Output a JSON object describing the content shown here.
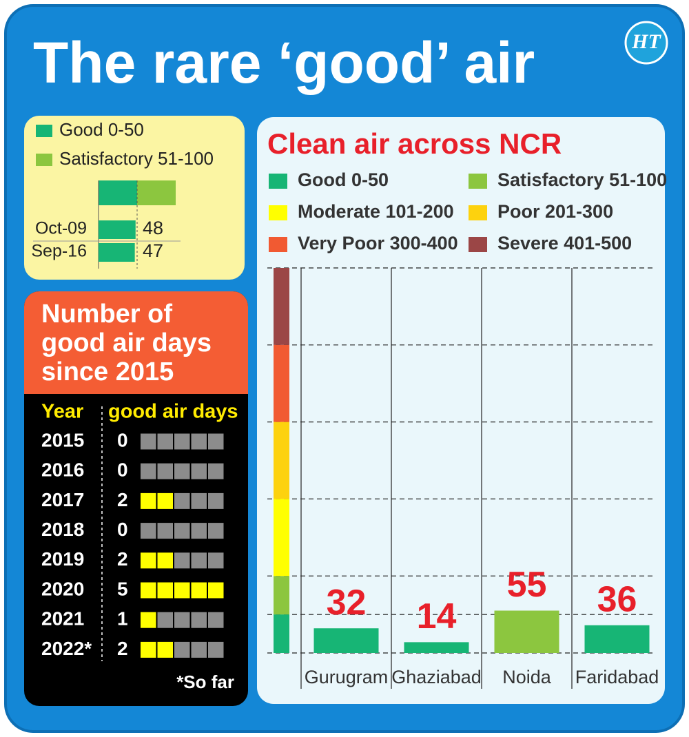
{
  "title": "The rare ‘good’ air",
  "logo": "HT",
  "chart_data": [
    {
      "type": "hbar",
      "bands": [
        {
          "name": "Good 0-50",
          "color": "#17b575",
          "from": 0,
          "to": 50
        },
        {
          "name": "Satisfactory 51-100",
          "color": "#8cc63f",
          "from": 50,
          "to": 100
        }
      ],
      "categories": [
        "Oct-09",
        "Sep-16"
      ],
      "values": [
        48,
        47
      ],
      "color": "#17b575",
      "xlim": [
        0,
        100
      ]
    },
    {
      "type": "waffle",
      "title": "Number of good air days since 2015",
      "columns": [
        "Year",
        "good air days"
      ],
      "categories": [
        "2015",
        "2016",
        "2017",
        "2018",
        "2019",
        "2020",
        "2021",
        "2022*"
      ],
      "values": [
        0,
        0,
        2,
        0,
        2,
        5,
        1,
        2
      ],
      "xlim": [
        0,
        5
      ],
      "color": "#ffff00",
      "empty_color": "#8c8c8c",
      "note": "*So far"
    },
    {
      "type": "bar",
      "title": "Clean air across NCR",
      "bands": [
        {
          "name": "Good 0-50",
          "color": "#17b575",
          "from": 0,
          "to": 50
        },
        {
          "name": "Satisfactory 51-100",
          "color": "#8cc63f",
          "from": 50,
          "to": 100
        },
        {
          "name": "Moderate 101-200",
          "color": "#ffff00",
          "from": 100,
          "to": 200
        },
        {
          "name": "Poor 201-300",
          "color": "#fdd20e",
          "from": 200,
          "to": 300
        },
        {
          "name": "Very Poor 300-400",
          "color": "#f15a32",
          "from": 300,
          "to": 400
        },
        {
          "name": "Severe 401-500",
          "color": "#9b4646",
          "from": 400,
          "to": 500
        }
      ],
      "categories": [
        "Gurugram",
        "Ghaziabad",
        "Noida",
        "Faridabad"
      ],
      "values": [
        32,
        14,
        55,
        36
      ],
      "colors": [
        "#17b575",
        "#17b575",
        "#8cc63f",
        "#17b575"
      ],
      "ylim": [
        0,
        500
      ],
      "yticks": [
        0,
        50,
        100,
        200,
        300,
        400,
        500
      ],
      "grid": true
    }
  ]
}
